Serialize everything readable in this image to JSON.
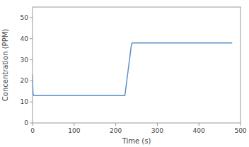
{
  "chart_data": {
    "type": "line",
    "x": [
      0,
      1,
      3,
      220,
      222,
      238,
      240,
      480
    ],
    "values": [
      23,
      14,
      13,
      13,
      13,
      37.5,
      38,
      38
    ],
    "color": "#5b8fc9",
    "xlabel": "Time (s)",
    "ylabel": "Concentration (PPM)",
    "xlim": [
      0,
      500
    ],
    "ylim": [
      0,
      55
    ],
    "xticks": [
      0,
      100,
      200,
      300,
      400,
      500
    ],
    "yticks": [
      0,
      10,
      20,
      30,
      40,
      50
    ],
    "grid": false
  }
}
